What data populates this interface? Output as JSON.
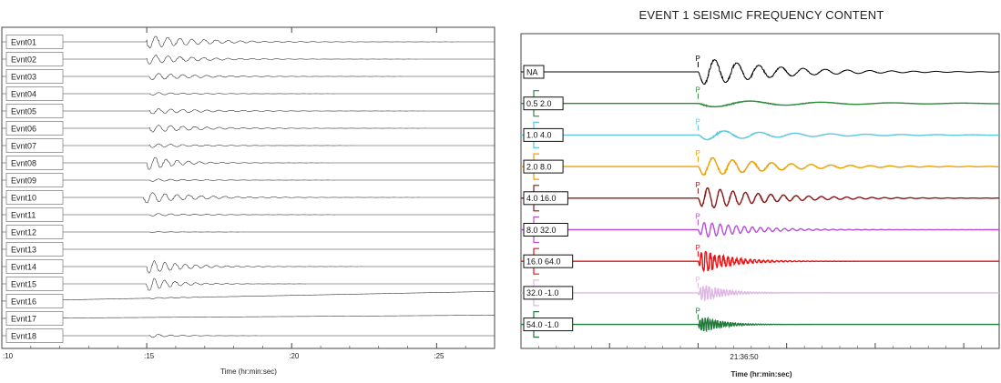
{
  "chart_data": [
    {
      "type": "line",
      "title": "",
      "xlabel": "Time (hr:min:sec)",
      "ylabel": "",
      "x_ticks": [
        ":10",
        ":15",
        ":20",
        ":25"
      ],
      "x_tick_seconds": [
        10,
        15,
        20,
        25
      ],
      "xlim": [
        10,
        27
      ],
      "grid": false,
      "trace_color": "#333333",
      "series": [
        {
          "name": "Evnt01",
          "onset": 15.0,
          "amp": 0.9,
          "decay": 1.8,
          "freq": 2.4,
          "drift": 0
        },
        {
          "name": "Evnt02",
          "onset": 15.0,
          "amp": 0.7,
          "decay": 1.6,
          "freq": 2.4,
          "drift": 0
        },
        {
          "name": "Evnt03",
          "onset": 15.1,
          "amp": 0.5,
          "decay": 1.6,
          "freq": 2.4,
          "drift": 0
        },
        {
          "name": "Evnt04",
          "onset": 15.1,
          "amp": 0.2,
          "decay": 1.4,
          "freq": 2.4,
          "drift": 0
        },
        {
          "name": "Evnt05",
          "onset": 15.1,
          "amp": 0.4,
          "decay": 1.8,
          "freq": 2.4,
          "drift": 0
        },
        {
          "name": "Evnt06",
          "onset": 15.1,
          "amp": 0.55,
          "decay": 1.7,
          "freq": 2.4,
          "drift": 0
        },
        {
          "name": "Evnt07",
          "onset": 15.1,
          "amp": 0.3,
          "decay": 1.4,
          "freq": 2.4,
          "drift": 0
        },
        {
          "name": "Evnt08",
          "onset": 15.0,
          "amp": 1.0,
          "decay": 1.0,
          "freq": 2.6,
          "drift": 0
        },
        {
          "name": "Evnt09",
          "onset": 15.1,
          "amp": 0.2,
          "decay": 1.4,
          "freq": 2.4,
          "drift": 0
        },
        {
          "name": "Evnt10",
          "onset": 14.9,
          "amp": 0.8,
          "decay": 1.6,
          "freq": 2.4,
          "drift": 0
        },
        {
          "name": "Evnt11",
          "onset": 15.1,
          "amp": 0.2,
          "decay": 1.4,
          "freq": 2.4,
          "drift": 0
        },
        {
          "name": "Evnt12",
          "onset": 15.1,
          "amp": 0.05,
          "decay": 1.0,
          "freq": 2.4,
          "drift": 0
        },
        {
          "name": "Evnt13",
          "onset": 15.1,
          "amp": 0.0,
          "decay": 1.0,
          "freq": 2.4,
          "drift": 0
        },
        {
          "name": "Evnt14",
          "onset": 15.0,
          "amp": 1.0,
          "decay": 1.2,
          "freq": 2.8,
          "drift": 0
        },
        {
          "name": "Evnt15",
          "onset": 15.0,
          "amp": 1.0,
          "decay": 0.9,
          "freq": 2.8,
          "drift": 0
        },
        {
          "name": "Evnt16",
          "onset": 15.1,
          "amp": 0.1,
          "decay": 1.2,
          "freq": 2.4,
          "drift": 0.9
        },
        {
          "name": "Evnt17",
          "onset": 15.1,
          "amp": 0.0,
          "decay": 1.0,
          "freq": 2.4,
          "drift": 0.3
        },
        {
          "name": "Evnt18",
          "onset": 15.1,
          "amp": 0.25,
          "decay": 0.8,
          "freq": 2.4,
          "drift": 0
        }
      ]
    },
    {
      "type": "line",
      "title": "EVENT 1 SEISMIC FREQUENCY CONTENT",
      "xlabel": "Time (hr:min:sec)",
      "ylabel": "",
      "x_ticks": [
        "21:36:50"
      ],
      "pick_label": "P",
      "onset": 0.0,
      "xlim": [
        -10,
        17
      ],
      "grid": false,
      "series": [
        {
          "name": "NA",
          "color": "#000000",
          "amp": 1.0,
          "decay": 4.0,
          "freq": 0.8
        },
        {
          "name": "0.5 2.0",
          "color": "#2e8b3a",
          "amp": 0.25,
          "decay": 6.0,
          "freq": 0.25
        },
        {
          "name": "1.0 4.0",
          "color": "#5ec8e0",
          "amp": 0.35,
          "decay": 5.0,
          "freq": 0.5
        },
        {
          "name": "2.0 8.0",
          "color": "#f0a000",
          "amp": 0.7,
          "decay": 4.0,
          "freq": 0.9
        },
        {
          "name": "4.0 16.0",
          "color": "#8b1a1a",
          "amp": 0.8,
          "decay": 3.5,
          "freq": 1.4
        },
        {
          "name": "8.0 32.0",
          "color": "#b84fd6",
          "amp": 0.6,
          "decay": 2.5,
          "freq": 2.2
        },
        {
          "name": "16.0 64.0",
          "color": "#ee1111",
          "amp": 0.9,
          "decay": 1.5,
          "freq": 4.0
        },
        {
          "name": "32.0 -1.0",
          "color": "#e0b8e8",
          "amp": 0.7,
          "decay": 1.2,
          "freq": 6.0
        },
        {
          "name": "54.0 -1.0",
          "color": "#1f7a3a",
          "amp": 0.7,
          "decay": 1.0,
          "freq": 7.0
        }
      ]
    }
  ]
}
